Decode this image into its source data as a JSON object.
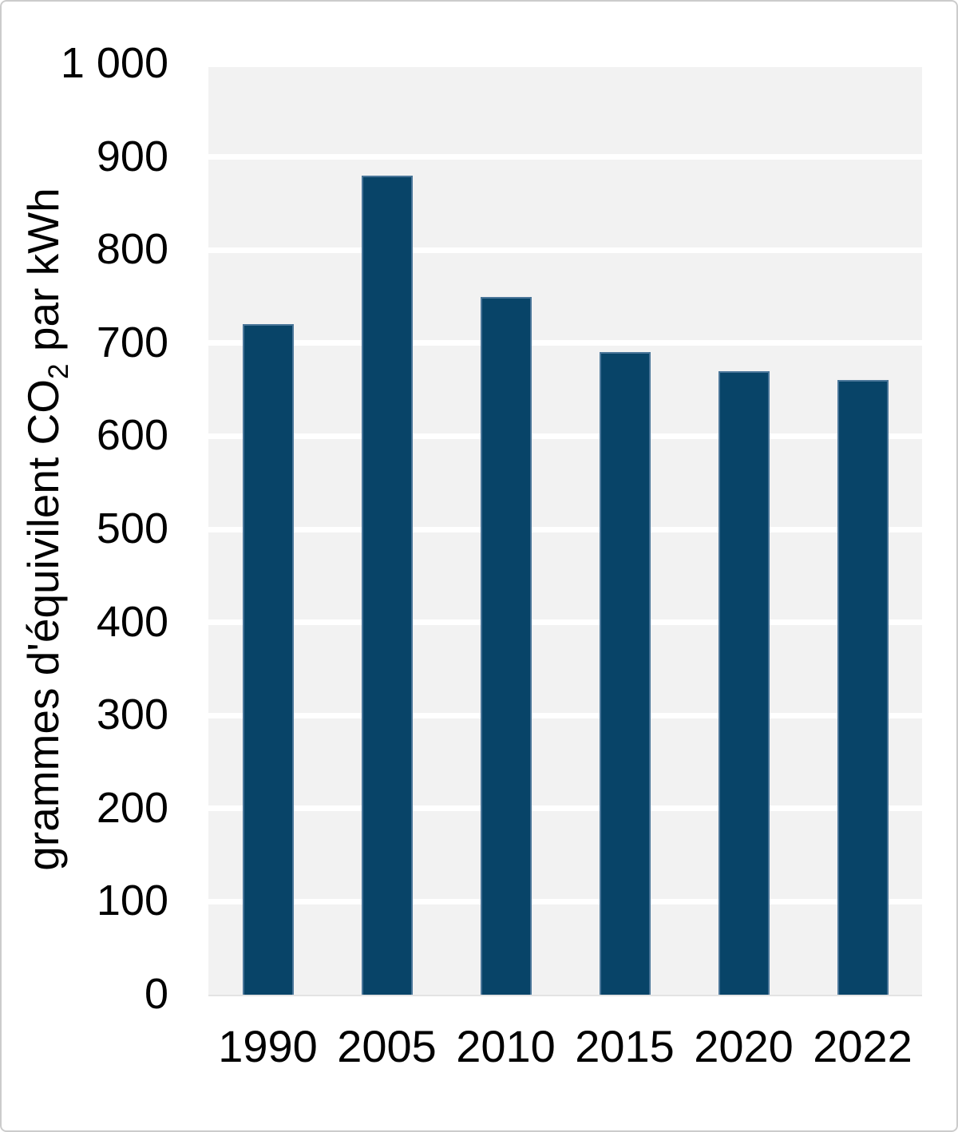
{
  "page": {
    "background": "#ffffff",
    "border_color": "#cccccc"
  },
  "colors": {
    "bar_fill": "#084468",
    "bar_border": "#4a7699",
    "plot_background": "#f2f2f2",
    "gridline": "#ffffff",
    "plot_bottom_line": "#e3e3e3",
    "axis_text": "#000000"
  },
  "chart_data": {
    "type": "bar",
    "title": "",
    "categories": [
      "1990",
      "2005",
      "2010",
      "2015",
      "2020",
      "2022"
    ],
    "values": [
      720,
      880,
      750,
      690,
      670,
      660
    ],
    "xlabel": "",
    "ylabel": "grammes d'équivilent CO2 par kWh",
    "ylabel_parts": {
      "pre": "grammes d'équivilent CO",
      "sub": "2",
      "post": " par kWh"
    },
    "ylim": [
      0,
      1000
    ],
    "ytick_step": 100,
    "ytick_labels": [
      "0",
      "100",
      "200",
      "300",
      "400",
      "500",
      "600",
      "700",
      "800",
      "900",
      "1 000"
    ],
    "grid": "horizontal-white-on-gray",
    "legend": "none"
  }
}
